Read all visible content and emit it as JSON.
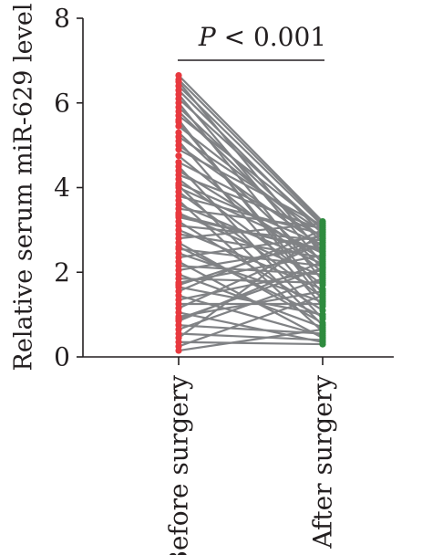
{
  "chart_data": {
    "type": "paired-dot",
    "ylabel": "Relative serum miR-629 level",
    "ylim": [
      0,
      8
    ],
    "yticks": [
      "0",
      "2",
      "4",
      "6",
      "8"
    ],
    "categories": [
      "Before surgery",
      "After surgery"
    ],
    "colors": {
      "before": "#e8393f",
      "after": "#2e8b3e",
      "line": "#808285",
      "axis": "#231f20"
    },
    "annotation": {
      "p_symbol": "P",
      "p_rest": " < 0.001",
      "between": [
        0,
        1
      ]
    },
    "pairs": [
      {
        "before": 6.65,
        "after": 3.2
      },
      {
        "before": 6.55,
        "after": 3.15
      },
      {
        "before": 6.5,
        "after": 2.4
      },
      {
        "before": 6.4,
        "after": 3.1
      },
      {
        "before": 6.3,
        "after": 2.9
      },
      {
        "before": 6.2,
        "after": 2.2
      },
      {
        "before": 6.1,
        "after": 3.0
      },
      {
        "before": 6.0,
        "after": 1.8
      },
      {
        "before": 5.9,
        "after": 2.7
      },
      {
        "before": 5.8,
        "after": 2.5
      },
      {
        "before": 5.7,
        "after": 3.05
      },
      {
        "before": 5.55,
        "after": 1.5
      },
      {
        "before": 5.45,
        "after": 2.8
      },
      {
        "before": 5.3,
        "after": 2.1
      },
      {
        "before": 5.2,
        "after": 2.95
      },
      {
        "before": 5.1,
        "after": 1.2
      },
      {
        "before": 5.0,
        "after": 2.6
      },
      {
        "before": 4.9,
        "after": 3.1
      },
      {
        "before": 4.75,
        "after": 2.0
      },
      {
        "before": 4.6,
        "after": 2.85
      },
      {
        "before": 4.5,
        "after": 0.9
      },
      {
        "before": 4.4,
        "after": 2.3
      },
      {
        "before": 4.3,
        "after": 3.0
      },
      {
        "before": 4.2,
        "after": 1.7
      },
      {
        "before": 4.1,
        "after": 2.65
      },
      {
        "before": 4.0,
        "after": 2.45
      },
      {
        "before": 3.9,
        "after": 1.4
      },
      {
        "before": 3.8,
        "after": 2.9
      },
      {
        "before": 3.7,
        "after": 0.6
      },
      {
        "before": 3.6,
        "after": 2.2
      },
      {
        "before": 3.5,
        "after": 3.05
      },
      {
        "before": 3.4,
        "after": 1.9
      },
      {
        "before": 3.3,
        "after": 2.55
      },
      {
        "before": 3.2,
        "after": 1.1
      },
      {
        "before": 3.1,
        "after": 2.75
      },
      {
        "before": 3.0,
        "after": 1.6
      },
      {
        "before": 2.9,
        "after": 2.35
      },
      {
        "before": 2.8,
        "after": 3.15
      },
      {
        "before": 2.7,
        "after": 0.8
      },
      {
        "before": 2.55,
        "after": 2.15
      },
      {
        "before": 2.45,
        "after": 1.3
      },
      {
        "before": 2.35,
        "after": 2.85
      },
      {
        "before": 2.25,
        "after": 0.45
      },
      {
        "before": 2.15,
        "after": 1.95
      },
      {
        "before": 2.05,
        "after": 2.6
      },
      {
        "before": 1.95,
        "after": 0.7
      },
      {
        "before": 1.85,
        "after": 1.75
      },
      {
        "before": 1.75,
        "after": 2.4
      },
      {
        "before": 1.65,
        "after": 1.0
      },
      {
        "before": 1.55,
        "after": 3.0
      },
      {
        "before": 1.45,
        "after": 0.5
      },
      {
        "before": 1.35,
        "after": 2.05
      },
      {
        "before": 1.25,
        "after": 1.25
      },
      {
        "before": 1.15,
        "after": 2.7
      },
      {
        "before": 1.05,
        "after": 0.35
      },
      {
        "before": 0.95,
        "after": 1.55
      },
      {
        "before": 0.85,
        "after": 2.25
      },
      {
        "before": 0.75,
        "after": 0.55
      },
      {
        "before": 0.65,
        "after": 1.85
      },
      {
        "before": 0.55,
        "after": 0.4
      },
      {
        "before": 0.45,
        "after": 2.95
      },
      {
        "before": 0.35,
        "after": 0.3
      },
      {
        "before": 0.25,
        "after": 1.45
      },
      {
        "before": 0.15,
        "after": 0.65
      },
      {
        "before": 2.6,
        "after": 0.95
      },
      {
        "before": 3.35,
        "after": 2.5
      },
      {
        "before": 4.05,
        "after": 0.75
      },
      {
        "before": 1.7,
        "after": 2.8
      },
      {
        "before": 5.6,
        "after": 1.35
      },
      {
        "before": 0.9,
        "after": 2.1
      }
    ]
  }
}
